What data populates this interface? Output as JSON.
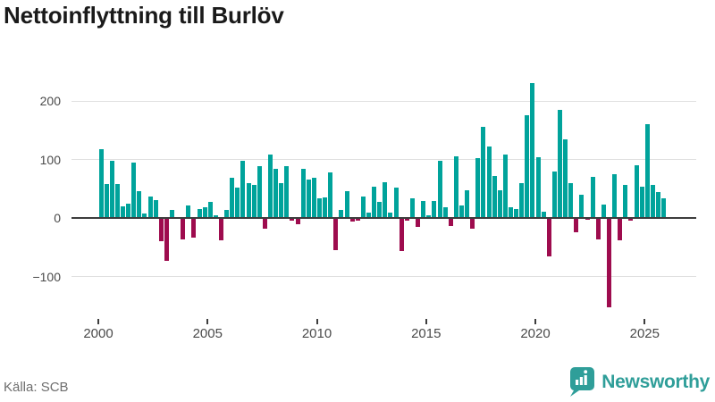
{
  "title": "Nettoinflyttning till Burlöv",
  "footer": {
    "source": "Källa: SCB",
    "brand": "Newsworthy"
  },
  "colors": {
    "positive_bar": "#00a39b",
    "negative_bar": "#9e0c4e",
    "brand_teal": "#2f9e99",
    "gridline": "#e0e0e0",
    "zero_line": "#3d3d3d",
    "title_text": "#1a1a1a",
    "axis_text": "#4a4a4a",
    "source_text": "#6e6e6e"
  },
  "chart_data": {
    "type": "bar",
    "title": "Nettoinflyttning till Burlöv",
    "xlabel": "",
    "ylabel": "",
    "frequency": "quarterly",
    "start": "2000-Q1",
    "end": "2025-Q4",
    "values": [
      118,
      58,
      98,
      58,
      20,
      25,
      95,
      46,
      8,
      36,
      31,
      -40,
      -74,
      13,
      0,
      -36,
      22,
      -33,
      16,
      19,
      27,
      4,
      -38,
      14,
      68,
      52,
      97,
      60,
      57,
      88,
      -19,
      108,
      84,
      59,
      89,
      -4,
      -11,
      84,
      66,
      68,
      34,
      35,
      78,
      -55,
      14,
      46,
      -6,
      -4,
      36,
      9,
      54,
      28,
      61,
      9,
      52,
      -57,
      -4,
      34,
      -15,
      29,
      5,
      29,
      97,
      19,
      -13,
      106,
      21,
      47,
      -19,
      102,
      156,
      122,
      72,
      47,
      108,
      19,
      16,
      59,
      175,
      230,
      104,
      10,
      -66,
      80,
      184,
      134,
      60,
      -25,
      39,
      -3,
      70,
      -36,
      23,
      -152,
      75,
      -38,
      57,
      -4,
      90,
      53,
      161,
      56,
      44,
      33
    ],
    "yticks": [
      {
        "label": "200",
        "value": 200
      },
      {
        "label": "100",
        "value": 100
      },
      {
        "label": "0",
        "value": 0
      },
      {
        "label": "−100",
        "value": -100
      }
    ],
    "xticks": [
      {
        "label": "2000",
        "year_offset": 0
      },
      {
        "label": "2005",
        "year_offset": 5
      },
      {
        "label": "2010",
        "year_offset": 10
      },
      {
        "label": "2015",
        "year_offset": 15
      },
      {
        "label": "2020",
        "year_offset": 20
      },
      {
        "label": "2025",
        "year_offset": 25
      }
    ],
    "ylim": [
      -160,
      240
    ],
    "grid": true,
    "legend": false,
    "source": "SCB"
  }
}
